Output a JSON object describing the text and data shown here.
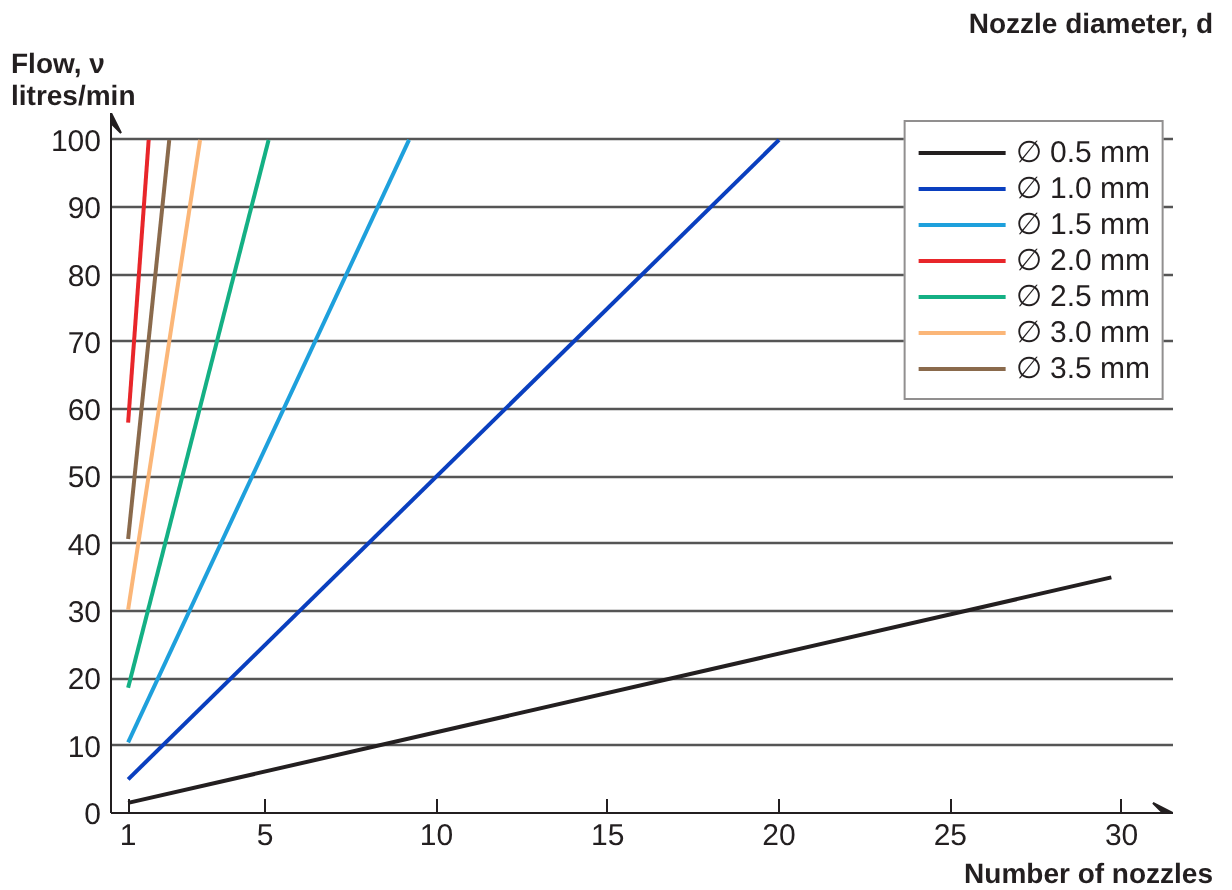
{
  "chart_data": {
    "type": "line",
    "ylabel": "Flow, ν\nlitres/min",
    "xlabel": "Number of nozzles",
    "legend_title": "Nozzle diameter, d",
    "series": [
      {
        "name": "∅ 0.5 mm",
        "color": "#231f20",
        "x": [
          1,
          29.7
        ],
        "values": [
          1.5,
          35
        ]
      },
      {
        "name": "∅ 1.0 mm",
        "color": "#0a3fbf",
        "x": [
          1,
          20
        ],
        "values": [
          5,
          100
        ]
      },
      {
        "name": "∅ 1.5 mm",
        "color": "#1ea0dc",
        "x": [
          1,
          9.2
        ],
        "values": [
          10.5,
          100
        ]
      },
      {
        "name": "∅ 2.0 mm",
        "color": "#e8262a",
        "x": [
          1,
          1.6
        ],
        "values": [
          58,
          100
        ]
      },
      {
        "name": "∅ 2.5 mm",
        "color": "#14b084",
        "x": [
          1,
          5.1
        ],
        "values": [
          18.6,
          100
        ]
      },
      {
        "name": "∅ 3.0 mm",
        "color": "#fbb678",
        "x": [
          1,
          3.1
        ],
        "values": [
          30.2,
          100
        ]
      },
      {
        "name": "∅ 3.5 mm",
        "color": "#8a6a4c",
        "x": [
          1,
          2.2
        ],
        "values": [
          40.7,
          100
        ]
      }
    ],
    "xlim": [
      0.5,
      31.5
    ],
    "ylim": [
      0,
      104
    ],
    "xticks": [
      1,
      5,
      10,
      15,
      20,
      25,
      30
    ],
    "yticks": [
      0,
      10,
      20,
      30,
      40,
      50,
      60,
      70,
      80,
      90,
      100
    ],
    "grid": "y",
    "legend": "top right",
    "line_style": "solid",
    "marker": "none"
  }
}
